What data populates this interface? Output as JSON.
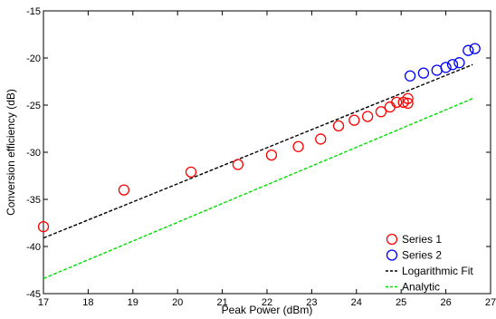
{
  "chart_data": {
    "type": "scatter",
    "title": "",
    "xlabel": "Peak Power (dBm)",
    "ylabel": "Conversion efficiency (dB)",
    "xlim": [
      17,
      27
    ],
    "ylim": [
      -45,
      -15
    ],
    "xticks": [
      "17",
      "18",
      "19",
      "20",
      "21",
      "22",
      "23",
      "24",
      "25",
      "26",
      "27"
    ],
    "yticks": [
      "-15",
      "-20",
      "-25",
      "-30",
      "-35",
      "-40",
      "-45"
    ],
    "grid": false,
    "legend_position": "bottom-right",
    "series": [
      {
        "name": "Series 1",
        "kind": "markers",
        "marker": "circle",
        "color": "#ff0000",
        "x": [
          17.0,
          18.8,
          20.3,
          21.35,
          22.1,
          22.7,
          23.2,
          23.6,
          23.95,
          24.25,
          24.55,
          24.75,
          24.9,
          25.05,
          25.15,
          25.15
        ],
        "y": [
          -37.9,
          -34.0,
          -32.1,
          -31.3,
          -30.3,
          -29.4,
          -28.6,
          -27.2,
          -26.6,
          -26.2,
          -25.7,
          -25.2,
          -24.7,
          -24.7,
          -24.3,
          -24.8
        ]
      },
      {
        "name": "Series 2",
        "kind": "markers",
        "marker": "circle",
        "color": "#0000ff",
        "x": [
          25.2,
          25.5,
          25.8,
          26.0,
          26.15,
          26.3,
          26.5,
          26.65
        ],
        "y": [
          -21.9,
          -21.6,
          -21.3,
          -21.0,
          -20.7,
          -20.5,
          -19.2,
          -19.0
        ]
      },
      {
        "name": "Logarithmic Fit",
        "kind": "line",
        "dash": "dashed",
        "color": "#000000",
        "x": [
          17.0,
          26.6
        ],
        "y": [
          -39.1,
          -20.7
        ]
      },
      {
        "name": "Analytic",
        "kind": "line",
        "dash": "dashed",
        "color": "#00dd00",
        "x": [
          17.0,
          26.6
        ],
        "y": [
          -43.4,
          -24.3
        ]
      }
    ]
  }
}
